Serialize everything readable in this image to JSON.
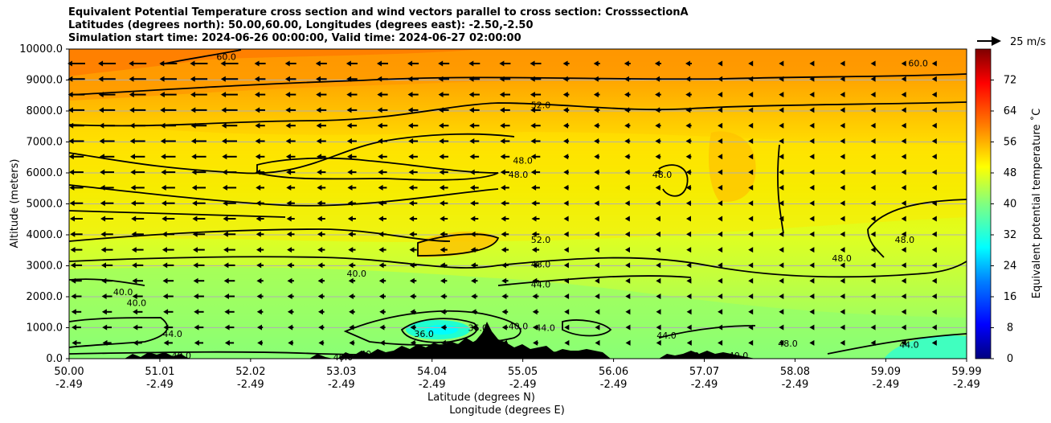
{
  "chart_data": {
    "type": "heatmap",
    "title_lines": [
      "Equivalent Potential Temperature cross section and wind vectors parallel to cross section: CrosssectionA",
      "Latitudes (degrees north): 50.00,60.00, Longitudes (degrees east): -2.50,-2.50",
      "Simulation start time: 2024-06-26 00:00:00, Valid time: 2024-06-27 02:00:00"
    ],
    "xlabel_line1": "Latitude (degrees N)",
    "xlabel_line2": "Longitude (degrees E)",
    "ylabel": "Altitude (meters)",
    "x_ticks": [
      {
        "lat": "50.00",
        "lon": "-2.49",
        "v": 50.0
      },
      {
        "lat": "51.01",
        "lon": "-2.49",
        "v": 51.01
      },
      {
        "lat": "52.02",
        "lon": "-2.49",
        "v": 52.02
      },
      {
        "lat": "53.03",
        "lon": "-2.49",
        "v": 53.03
      },
      {
        "lat": "54.04",
        "lon": "-2.49",
        "v": 54.04
      },
      {
        "lat": "55.05",
        "lon": "-2.49",
        "v": 55.05
      },
      {
        "lat": "56.06",
        "lon": "-2.49",
        "v": 56.06
      },
      {
        "lat": "57.07",
        "lon": "-2.49",
        "v": 57.07
      },
      {
        "lat": "58.08",
        "lon": "-2.49",
        "v": 58.08
      },
      {
        "lat": "59.09",
        "lon": "-2.49",
        "v": 59.09
      },
      {
        "lat": "59.99",
        "lon": "-2.49",
        "v": 59.99
      }
    ],
    "y_ticks": [
      "0.0",
      "1000.0",
      "2000.0",
      "3000.0",
      "4000.0",
      "5000.0",
      "6000.0",
      "7000.0",
      "8000.0",
      "9000.0",
      "10000.0"
    ],
    "xlim": [
      50.0,
      59.99
    ],
    "ylim": [
      0,
      10000
    ],
    "grid": "horizontal",
    "colorbar": {
      "label": "Equivalent potential temperature $^\\circ$C",
      "label_display": "Equivalent potential temperature ˚C",
      "ticks": [
        "0",
        "8",
        "16",
        "24",
        "32",
        "40",
        "48",
        "56",
        "64",
        "72"
      ],
      "range": [
        0,
        80
      ],
      "colors": [
        "#00007f",
        "#0000c8",
        "#0000ff",
        "#0040ff",
        "#0080ff",
        "#00c0ff",
        "#00ffff",
        "#40ffbf",
        "#80ff80",
        "#bfff40",
        "#ffff00",
        "#ffbf00",
        "#ff8000",
        "#ff4000",
        "#ff0000",
        "#7f0000"
      ]
    },
    "quiver_key": {
      "label": "25 m/s",
      "speed": 25
    },
    "contour_labels": [
      {
        "text": "60.0",
        "lat": 51.75,
        "alt": 9750
      },
      {
        "text": "60.0",
        "lat": 59.45,
        "alt": 9550
      },
      {
        "text": "52.0",
        "lat": 55.25,
        "alt": 8200
      },
      {
        "text": "48.0",
        "lat": 55.05,
        "alt": 6400
      },
      {
        "text": "48.0",
        "lat": 55.0,
        "alt": 5950
      },
      {
        "text": "48.0",
        "lat": 56.6,
        "alt": 5950
      },
      {
        "text": "52.0",
        "lat": 55.25,
        "alt": 3850
      },
      {
        "text": "48.0",
        "lat": 55.25,
        "alt": 3050
      },
      {
        "text": "44.0",
        "lat": 55.25,
        "alt": 2400
      },
      {
        "text": "48.0",
        "lat": 59.3,
        "alt": 3850
      },
      {
        "text": "48.0",
        "lat": 58.6,
        "alt": 3250
      },
      {
        "text": "40.0",
        "lat": 53.2,
        "alt": 2750
      },
      {
        "text": "40.0",
        "lat": 50.6,
        "alt": 2150
      },
      {
        "text": "40.0",
        "lat": 50.75,
        "alt": 1800
      },
      {
        "text": "44.0",
        "lat": 51.15,
        "alt": 800
      },
      {
        "text": "36.0",
        "lat": 53.95,
        "alt": 800
      },
      {
        "text": "36.0",
        "lat": 54.55,
        "alt": 1000
      },
      {
        "text": "40.0",
        "lat": 55.0,
        "alt": 1050
      },
      {
        "text": "44.0",
        "lat": 55.3,
        "alt": 1000
      },
      {
        "text": "44.0",
        "lat": 56.65,
        "alt": 750
      },
      {
        "text": "40.0",
        "lat": 51.25,
        "alt": 100
      },
      {
        "text": "40.0",
        "lat": 53.05,
        "alt": 50
      },
      {
        "text": "40.0",
        "lat": 53.35,
        "alt": 150
      },
      {
        "text": "40.0",
        "lat": 57.0,
        "alt": 100
      },
      {
        "text": "40.0",
        "lat": 57.45,
        "alt": 100
      },
      {
        "text": "44.0",
        "lat": 59.35,
        "alt": 450
      },
      {
        "text": "48.0",
        "lat": 58.0,
        "alt": 500
      }
    ]
  }
}
